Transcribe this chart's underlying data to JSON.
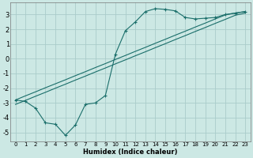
{
  "xlabel": "Humidex (Indice chaleur)",
  "bg_color": "#cce8e4",
  "grid_color": "#aaccca",
  "line_color": "#1a6e6a",
  "line1_x": [
    0,
    1,
    2,
    3,
    4,
    5,
    6,
    7,
    8,
    9,
    10,
    11,
    12,
    13,
    14,
    15,
    16,
    17,
    18,
    19,
    20,
    21,
    22,
    23
  ],
  "line1_y": [
    -2.8,
    -2.9,
    -3.35,
    -4.35,
    -4.45,
    -5.2,
    -4.5,
    -3.1,
    -3.0,
    -2.5,
    0.3,
    1.9,
    2.5,
    3.2,
    3.4,
    3.35,
    3.25,
    2.8,
    2.7,
    2.75,
    2.8,
    3.0,
    3.1,
    3.2
  ],
  "line2_x": [
    0,
    1,
    2,
    3,
    4,
    5,
    6,
    7,
    8,
    9,
    10,
    11,
    12,
    13,
    14,
    15,
    16,
    17,
    18,
    19,
    20,
    21,
    22,
    23
  ],
  "line2_y": [
    -2.8,
    -2.52,
    -2.25,
    -1.97,
    -1.7,
    -1.43,
    -1.15,
    -0.88,
    -0.6,
    -0.33,
    -0.05,
    0.22,
    0.5,
    0.77,
    1.05,
    1.32,
    1.6,
    1.87,
    2.15,
    2.42,
    2.7,
    2.97,
    3.1,
    3.2
  ],
  "line3_x": [
    0,
    1,
    2,
    3,
    4,
    5,
    6,
    7,
    8,
    9,
    10,
    11,
    12,
    13,
    14,
    15,
    16,
    17,
    18,
    19,
    20,
    21,
    22,
    23
  ],
  "line3_y": [
    -3.1,
    -2.83,
    -2.55,
    -2.28,
    -2.0,
    -1.73,
    -1.45,
    -1.18,
    -0.9,
    -0.63,
    -0.35,
    -0.08,
    0.2,
    0.47,
    0.75,
    1.02,
    1.3,
    1.57,
    1.85,
    2.12,
    2.4,
    2.67,
    2.95,
    3.1
  ],
  "xlim": [
    -0.5,
    23.5
  ],
  "ylim": [
    -5.6,
    3.8
  ],
  "xticks": [
    0,
    1,
    2,
    3,
    4,
    5,
    6,
    7,
    8,
    9,
    10,
    11,
    12,
    13,
    14,
    15,
    16,
    17,
    18,
    19,
    20,
    21,
    22,
    23
  ],
  "yticks": [
    -5,
    -4,
    -3,
    -2,
    -1,
    0,
    1,
    2,
    3
  ],
  "fontsize_xlabel": 6,
  "fontsize_tick": 5
}
